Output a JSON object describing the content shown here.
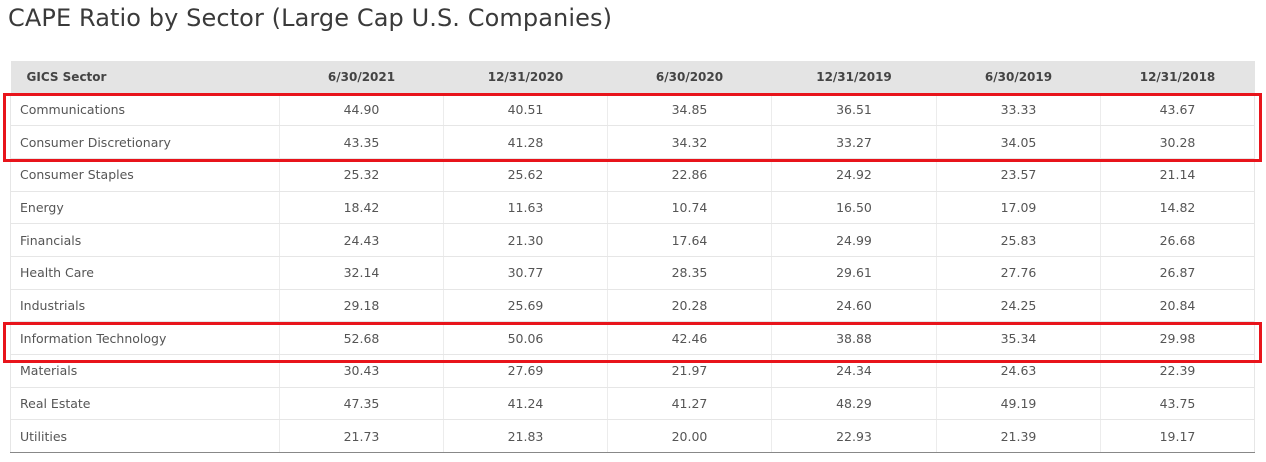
{
  "page": {
    "title": "CAPE Ratio by Sector (Large Cap U.S. Companies)"
  },
  "colors": {
    "header_bg": "#e4e4e4",
    "highlight_border": "#e8141b",
    "text": "#555555"
  },
  "chart_data": {
    "type": "table",
    "title": "CAPE Ratio by Sector (Large Cap U.S. Companies)",
    "columns": [
      "GICS Sector",
      "6/30/2021",
      "12/31/2020",
      "6/30/2020",
      "12/31/2019",
      "6/30/2019",
      "12/31/2018"
    ],
    "rows": [
      [
        "Communications",
        "44.90",
        "40.51",
        "34.85",
        "36.51",
        "33.33",
        "43.67"
      ],
      [
        "Consumer Discretionary",
        "43.35",
        "41.28",
        "34.32",
        "33.27",
        "34.05",
        "30.28"
      ],
      [
        "Consumer Staples",
        "25.32",
        "25.62",
        "22.86",
        "24.92",
        "23.57",
        "21.14"
      ],
      [
        "Energy",
        "18.42",
        "11.63",
        "10.74",
        "16.50",
        "17.09",
        "14.82"
      ],
      [
        "Financials",
        "24.43",
        "21.30",
        "17.64",
        "24.99",
        "25.83",
        "26.68"
      ],
      [
        "Health Care",
        "32.14",
        "30.77",
        "28.35",
        "29.61",
        "27.76",
        "26.87"
      ],
      [
        "Industrials",
        "29.18",
        "25.69",
        "20.28",
        "24.60",
        "24.25",
        "20.84"
      ],
      [
        "Information Technology",
        "52.68",
        "50.06",
        "42.46",
        "38.88",
        "35.34",
        "29.98"
      ],
      [
        "Materials",
        "30.43",
        "27.69",
        "21.97",
        "24.34",
        "24.63",
        "22.39"
      ],
      [
        "Real Estate",
        "47.35",
        "41.24",
        "41.27",
        "48.29",
        "49.19",
        "43.75"
      ],
      [
        "Utilities",
        "21.73",
        "21.83",
        "20.00",
        "22.93",
        "21.39",
        "19.17"
      ]
    ],
    "highlighted_rows": [
      [
        "Communications",
        "Consumer Discretionary"
      ],
      [
        "Information Technology"
      ]
    ]
  }
}
